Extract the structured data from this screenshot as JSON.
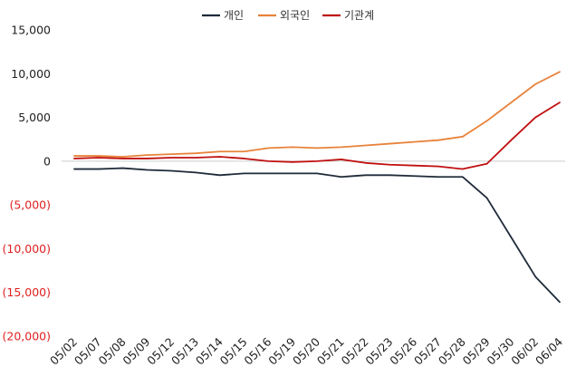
{
  "chart_data": {
    "type": "line",
    "categories": [
      "05/02",
      "05/07",
      "05/08",
      "05/09",
      "05/12",
      "05/13",
      "05/14",
      "05/15",
      "05/16",
      "05/19",
      "05/20",
      "05/21",
      "05/22",
      "05/23",
      "05/26",
      "05/27",
      "05/28",
      "05/29",
      "05/30",
      "06/02",
      "06/04"
    ],
    "series": [
      {
        "name": "개인",
        "color": "#1f2a3a",
        "values": [
          -900,
          -900,
          -800,
          -1000,
          -1100,
          -1300,
          -1600,
          -1400,
          -1400,
          -1400,
          -1400,
          -1800,
          -1600,
          -1600,
          -1700,
          -1800,
          -1800,
          -4200,
          -8700,
          -13200,
          -16100
        ]
      },
      {
        "name": "외국인",
        "color": "#e8823a",
        "values": [
          600,
          600,
          500,
          700,
          800,
          900,
          1100,
          1100,
          1500,
          1600,
          1500,
          1600,
          1800,
          2000,
          2200,
          2400,
          2800,
          4600,
          6700,
          8800,
          10200
        ]
      },
      {
        "name": "기관계",
        "color": "#c01010",
        "values": [
          300,
          400,
          300,
          300,
          400,
          400,
          500,
          300,
          0,
          -100,
          0,
          200,
          -200,
          -400,
          -500,
          -600,
          -900,
          -300,
          2400,
          5000,
          6700
        ]
      }
    ],
    "ylim": [
      -20000,
      15000
    ],
    "yticks": [
      15000,
      10000,
      5000,
      0,
      -5000,
      -10000,
      -15000,
      -20000
    ],
    "ytick_labels": [
      "15,000",
      "10,000",
      "5,000",
      "0",
      "(5,000)",
      "(10,000)",
      "(15,000)",
      "(20,000)"
    ],
    "negative_label_color": "#e02020",
    "zero_line_color": "#cccccc",
    "grid": false,
    "legend_position": "top-center"
  }
}
